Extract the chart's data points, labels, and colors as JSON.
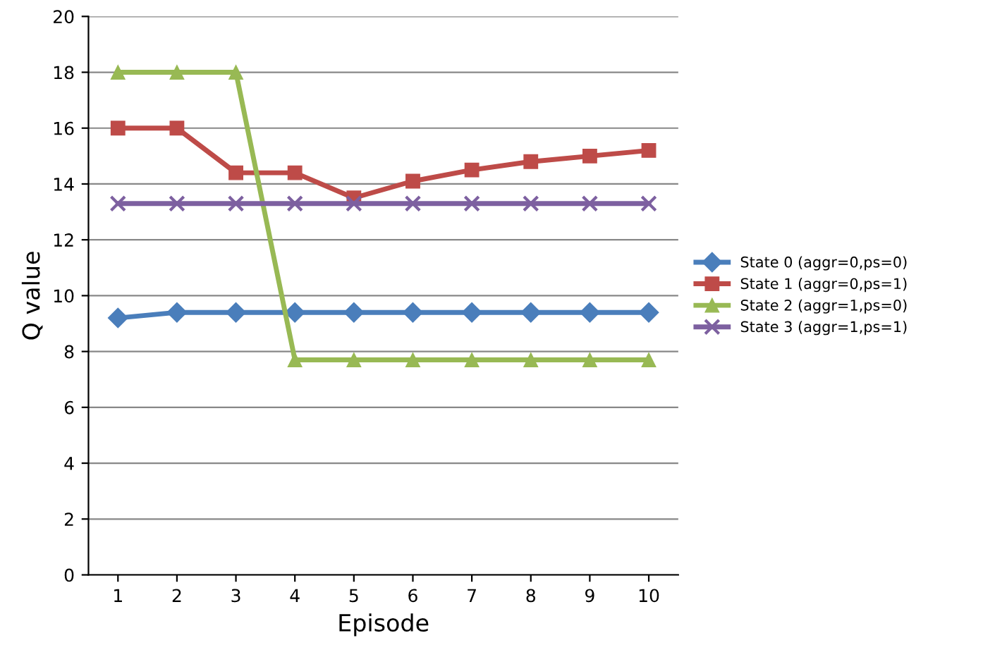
{
  "chart_data": {
    "type": "line",
    "xlabel": "Episode",
    "ylabel": "Q value",
    "categories": [
      "1",
      "2",
      "3",
      "4",
      "5",
      "6",
      "7",
      "8",
      "9",
      "10"
    ],
    "series": [
      {
        "name": "State 0 (aggr=0,ps=0)",
        "color": "#4a7ebb",
        "marker": "diamond",
        "values": [
          9.2,
          9.4,
          9.4,
          9.4,
          9.4,
          9.4,
          9.4,
          9.4,
          9.4,
          9.4
        ]
      },
      {
        "name": "State 1 (aggr=0,ps=1)",
        "color": "#be4b48",
        "marker": "square",
        "values": [
          16.0,
          16.0,
          14.4,
          14.4,
          13.5,
          14.1,
          14.5,
          14.8,
          15.0,
          15.2
        ]
      },
      {
        "name": "State 2 (aggr=1,ps=0)",
        "color": "#98b954",
        "marker": "triangle",
        "values": [
          18.0,
          18.0,
          18.0,
          7.7,
          7.7,
          7.7,
          7.7,
          7.7,
          7.7,
          7.7
        ]
      },
      {
        "name": "State 3 (aggr=1,ps=1)",
        "color": "#7d60a0",
        "marker": "cross",
        "values": [
          13.3,
          13.3,
          13.3,
          13.3,
          13.3,
          13.3,
          13.3,
          13.3,
          13.3,
          13.3
        ]
      }
    ],
    "ylim": [
      0,
      20
    ],
    "yticks": [
      0,
      2,
      4,
      6,
      8,
      10,
      12,
      14,
      16,
      18,
      20
    ],
    "grid": "y",
    "legend": "right",
    "line_style": "solid"
  }
}
